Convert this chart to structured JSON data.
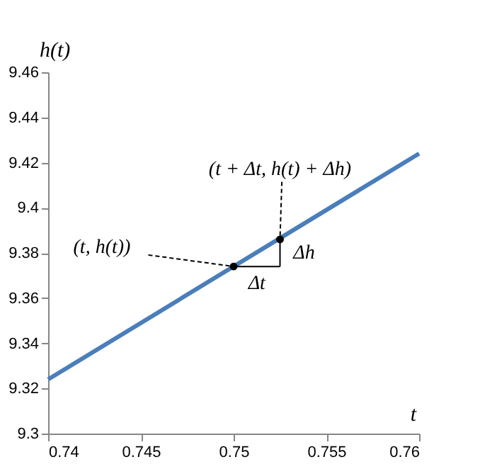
{
  "chart_data": {
    "type": "line",
    "xlabel": "t",
    "ylabel": "h(t)",
    "xlim": [
      0.74,
      0.76
    ],
    "xticks": [
      0.74,
      0.745,
      0.75,
      0.755,
      0.76
    ],
    "ylim": [
      9.3,
      9.46
    ],
    "yticks": [
      9.3,
      9.32,
      9.34,
      9.36,
      9.38,
      9.4,
      9.42,
      9.44,
      9.46
    ],
    "grid": false,
    "series": [
      {
        "color": "#4a7ebb",
        "x": [
          0.74,
          0.76
        ],
        "values": [
          9.324,
          9.424
        ],
        "line_style": "solid"
      },
      {
        "type": "scatter",
        "color": "#000000",
        "x": [
          0.75,
          0.7525
        ],
        "values": [
          9.374,
          9.386
        ],
        "marker": "circle"
      }
    ],
    "annotations": [
      {
        "text": "(t, h(t))",
        "x": 0.75,
        "y": 9.374
      },
      {
        "text": "(t + Δt, h(t) + Δh)",
        "x": 0.7525,
        "y": 9.386
      },
      "Δt",
      "Δh"
    ]
  }
}
